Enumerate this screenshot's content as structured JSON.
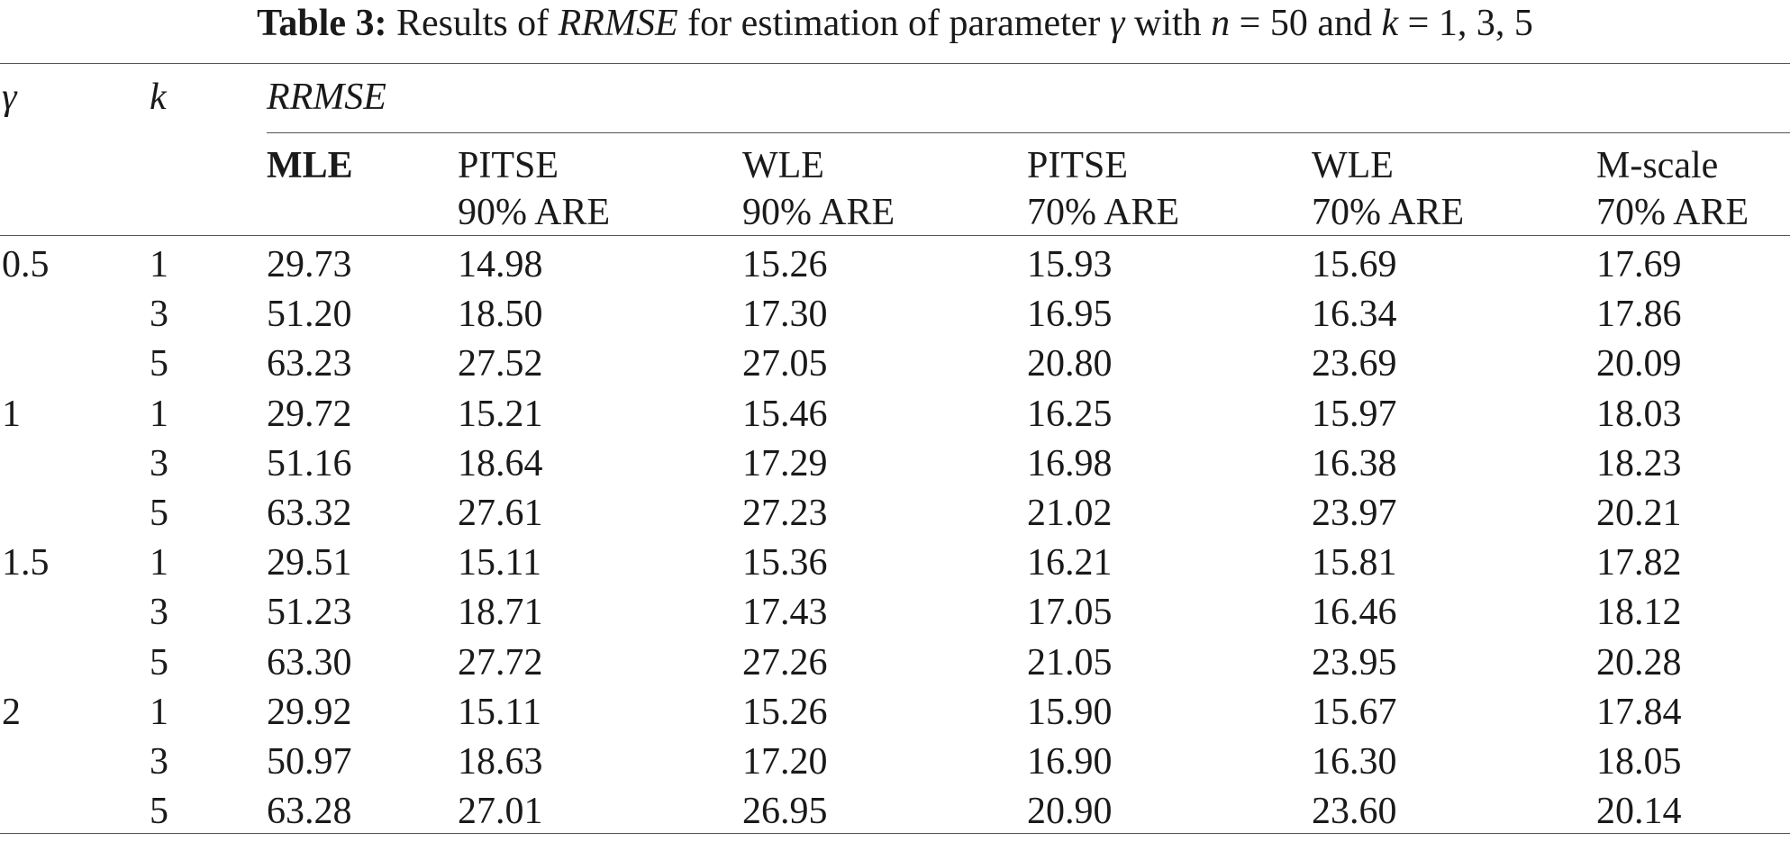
{
  "caption": {
    "label": "Table 3:",
    "text_1": " Results of ",
    "metric": "RRMSE",
    "text_2": " for estimation of parameter ",
    "param": "γ",
    "text_3": " with ",
    "n_var": "n",
    "text_4": " = 50 and ",
    "k_var": "k",
    "text_5": " = 1, 3, 5"
  },
  "header": {
    "gamma": "γ",
    "k": "k",
    "group": "RRMSE",
    "columns": [
      {
        "line1": "MLE",
        "line2": ""
      },
      {
        "line1": "PITSE",
        "line2": "90% ARE"
      },
      {
        "line1": "WLE",
        "line2": "90% ARE"
      },
      {
        "line1": "PITSE",
        "line2": "70% ARE"
      },
      {
        "line1": "WLE",
        "line2": "70% ARE"
      },
      {
        "line1": "M-scale",
        "line2": "70% ARE"
      }
    ]
  },
  "rows": [
    {
      "gamma": "0.5",
      "k": "1",
      "values": [
        "29.73",
        "14.98",
        "15.26",
        "15.93",
        "15.69",
        "17.69"
      ]
    },
    {
      "gamma": "",
      "k": "3",
      "values": [
        "51.20",
        "18.50",
        "17.30",
        "16.95",
        "16.34",
        "17.86"
      ]
    },
    {
      "gamma": "",
      "k": "5",
      "values": [
        "63.23",
        "27.52",
        "27.05",
        "20.80",
        "23.69",
        "20.09"
      ]
    },
    {
      "gamma": "1",
      "k": "1",
      "values": [
        "29.72",
        "15.21",
        "15.46",
        "16.25",
        "15.97",
        "18.03"
      ]
    },
    {
      "gamma": "",
      "k": "3",
      "values": [
        "51.16",
        "18.64",
        "17.29",
        "16.98",
        "16.38",
        "18.23"
      ]
    },
    {
      "gamma": "",
      "k": "5",
      "values": [
        "63.32",
        "27.61",
        "27.23",
        "21.02",
        "23.97",
        "20.21"
      ]
    },
    {
      "gamma": "1.5",
      "k": "1",
      "values": [
        "29.51",
        "15.11",
        "15.36",
        "16.21",
        "15.81",
        "17.82"
      ]
    },
    {
      "gamma": "",
      "k": "3",
      "values": [
        "51.23",
        "18.71",
        "17.43",
        "17.05",
        "16.46",
        "18.12"
      ]
    },
    {
      "gamma": "",
      "k": "5",
      "values": [
        "63.30",
        "27.72",
        "27.26",
        "21.05",
        "23.95",
        "20.28"
      ]
    },
    {
      "gamma": "2",
      "k": "1",
      "values": [
        "29.92",
        "15.11",
        "15.26",
        "15.90",
        "15.67",
        "17.84"
      ]
    },
    {
      "gamma": "",
      "k": "3",
      "values": [
        "50.97",
        "18.63",
        "17.20",
        "16.90",
        "16.30",
        "18.05"
      ]
    },
    {
      "gamma": "",
      "k": "5",
      "values": [
        "63.28",
        "27.01",
        "26.95",
        "20.90",
        "23.60",
        "20.14"
      ]
    }
  ]
}
